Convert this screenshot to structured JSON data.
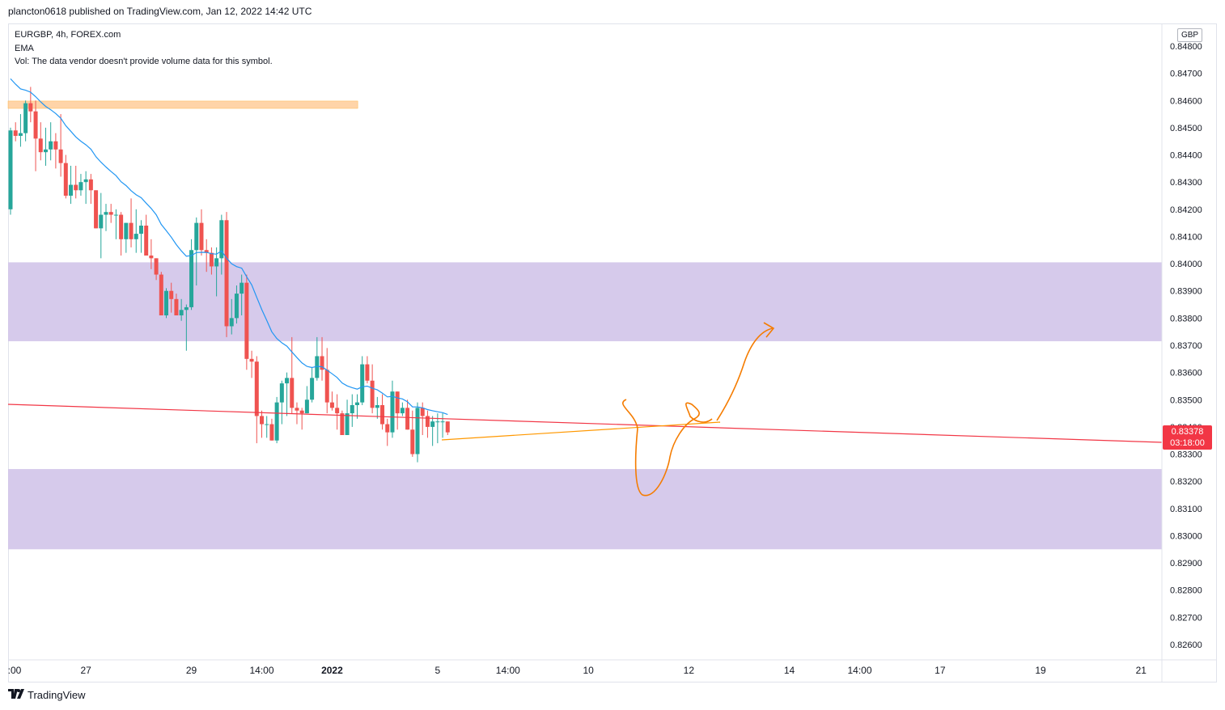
{
  "header": {
    "published_text": "plancton0618 published on TradingView.com, Jan 12, 2022 14:42 UTC"
  },
  "legend": {
    "symbol_line": "EURGBP, 4h, FOREX.com",
    "ema_label": "EMA",
    "vol_line": "Vol: The data vendor doesn't provide volume data for this symbol."
  },
  "currency": "GBP",
  "last_price": {
    "value": "0.83378",
    "countdown": "03:18:00",
    "color": "#f23645"
  },
  "footer": {
    "brand": "TradingView",
    "logo": "tradingview-logo-icon"
  },
  "colors": {
    "up": "#26a69a",
    "down": "#ef5350",
    "ema": "#2196f3",
    "zone": "#d1c4e9",
    "resistance_highlight": "#ffcc99",
    "trendline": "#f23645",
    "drawing": "#f57c00",
    "support_line": "#ff9800"
  },
  "chart_data": {
    "type": "candlestick",
    "symbol": "EURGBP",
    "timeframe": "4h",
    "y_axis": {
      "ylim": [
        0.8254,
        0.8487
      ],
      "ticks": [
        "0.84800",
        "0.84700",
        "0.84600",
        "0.84500",
        "0.84400",
        "0.84300",
        "0.84200",
        "0.84100",
        "0.84000",
        "0.83900",
        "0.83800",
        "0.83700",
        "0.83600",
        "0.83500",
        "0.83400",
        "0.83300",
        "0.83200",
        "0.83100",
        "0.83000",
        "0.82900",
        "0.82800",
        "0.82700",
        "0.82600"
      ]
    },
    "x_axis": {
      "ticks": [
        {
          "label": ":00",
          "i": 0
        },
        {
          "label": "27",
          "i": 15
        },
        {
          "label": "29",
          "i": 36
        },
        {
          "label": "14:00",
          "i": 50
        },
        {
          "label": "2022",
          "i": 64
        },
        {
          "label": "5",
          "i": 85
        },
        {
          "label": "14:00",
          "i": 99
        },
        {
          "label": "10",
          "i": 115
        },
        {
          "label": "12",
          "i": 135
        },
        {
          "label": "14",
          "i": 155
        },
        {
          "label": "14:00",
          "i": 169
        },
        {
          "label": "17",
          "i": 185
        },
        {
          "label": "19",
          "i": 205
        },
        {
          "label": "21",
          "i": 225
        }
      ]
    },
    "candles": [
      [
        0.842,
        0.845,
        0.8418,
        0.8449
      ],
      [
        0.8449,
        0.8452,
        0.8445,
        0.8447
      ],
      [
        0.8447,
        0.8455,
        0.8443,
        0.8448
      ],
      [
        0.8448,
        0.846,
        0.8445,
        0.8459
      ],
      [
        0.8459,
        0.8465,
        0.8452,
        0.8456
      ],
      [
        0.8456,
        0.846,
        0.8434,
        0.8446
      ],
      [
        0.8446,
        0.8452,
        0.8438,
        0.8441
      ],
      [
        0.8441,
        0.845,
        0.8436,
        0.8442
      ],
      [
        0.8442,
        0.8452,
        0.8438,
        0.8445
      ],
      [
        0.8445,
        0.8448,
        0.8435,
        0.8442
      ],
      [
        0.8442,
        0.8455,
        0.8432,
        0.8437
      ],
      [
        0.8437,
        0.844,
        0.8424,
        0.8425
      ],
      [
        0.8425,
        0.8436,
        0.8422,
        0.8429
      ],
      [
        0.8429,
        0.8436,
        0.8424,
        0.8427
      ],
      [
        0.8427,
        0.8433,
        0.8425,
        0.843
      ],
      [
        0.843,
        0.8434,
        0.8422,
        0.8431
      ],
      [
        0.8431,
        0.8433,
        0.8422,
        0.8427
      ],
      [
        0.8427,
        0.8427,
        0.8413,
        0.8413
      ],
      [
        0.8413,
        0.8426,
        0.8402,
        0.8418
      ],
      [
        0.8418,
        0.8422,
        0.8412,
        0.8419
      ],
      [
        0.8419,
        0.8422,
        0.8415,
        0.8418
      ],
      [
        0.8418,
        0.842,
        0.8409,
        0.8418
      ],
      [
        0.8418,
        0.8419,
        0.8403,
        0.8409
      ],
      [
        0.8409,
        0.8415,
        0.8404,
        0.8415
      ],
      [
        0.8415,
        0.8424,
        0.8406,
        0.8409
      ],
      [
        0.8409,
        0.842,
        0.8404,
        0.8411
      ],
      [
        0.8411,
        0.8416,
        0.8404,
        0.8414
      ],
      [
        0.8414,
        0.8418,
        0.8403,
        0.8403
      ],
      [
        0.8403,
        0.8409,
        0.8398,
        0.8402
      ],
      [
        0.8402,
        0.8402,
        0.8394,
        0.8396
      ],
      [
        0.8396,
        0.8397,
        0.8381,
        0.8381
      ],
      [
        0.8381,
        0.8391,
        0.838,
        0.839
      ],
      [
        0.839,
        0.8393,
        0.8382,
        0.8387
      ],
      [
        0.8387,
        0.8389,
        0.8381,
        0.8381
      ],
      [
        0.8381,
        0.8387,
        0.8379,
        0.8383
      ],
      [
        0.8383,
        0.8385,
        0.8368,
        0.8384
      ],
      [
        0.8384,
        0.8409,
        0.8383,
        0.8405
      ],
      [
        0.8405,
        0.8417,
        0.8392,
        0.8415
      ],
      [
        0.8415,
        0.842,
        0.8403,
        0.8405
      ],
      [
        0.8405,
        0.8409,
        0.8397,
        0.8404
      ],
      [
        0.8404,
        0.8406,
        0.8396,
        0.8399
      ],
      [
        0.8399,
        0.8406,
        0.8388,
        0.8402
      ],
      [
        0.8402,
        0.8418,
        0.8396,
        0.8416
      ],
      [
        0.8416,
        0.8419,
        0.8373,
        0.8377
      ],
      [
        0.8377,
        0.8387,
        0.8374,
        0.838
      ],
      [
        0.838,
        0.8392,
        0.8378,
        0.8389
      ],
      [
        0.8389,
        0.8396,
        0.8381,
        0.8393
      ],
      [
        0.8393,
        0.8396,
        0.8361,
        0.8365
      ],
      [
        0.8365,
        0.8368,
        0.8358,
        0.8364
      ],
      [
        0.8364,
        0.8366,
        0.8334,
        0.8344
      ],
      [
        0.8344,
        0.8346,
        0.8336,
        0.8341
      ],
      [
        0.8341,
        0.8344,
        0.8336,
        0.8341
      ],
      [
        0.8341,
        0.8343,
        0.8335,
        0.8335
      ],
      [
        0.8335,
        0.8351,
        0.8334,
        0.8349
      ],
      [
        0.8349,
        0.8357,
        0.8341,
        0.8356
      ],
      [
        0.8356,
        0.836,
        0.8344,
        0.8358
      ],
      [
        0.8358,
        0.8373,
        0.8345,
        0.8347
      ],
      [
        0.8347,
        0.8349,
        0.8341,
        0.8346
      ],
      [
        0.8346,
        0.8347,
        0.8339,
        0.8345
      ],
      [
        0.8345,
        0.8355,
        0.8345,
        0.835
      ],
      [
        0.835,
        0.8362,
        0.8349,
        0.8358
      ],
      [
        0.8358,
        0.8373,
        0.8357,
        0.8366
      ],
      [
        0.8366,
        0.8373,
        0.8357,
        0.8361
      ],
      [
        0.8361,
        0.8369,
        0.8345,
        0.8349
      ],
      [
        0.8349,
        0.8353,
        0.8346,
        0.8347
      ],
      [
        0.8347,
        0.8352,
        0.8339,
        0.8345
      ],
      [
        0.8345,
        0.8346,
        0.8337,
        0.8337
      ],
      [
        0.8337,
        0.835,
        0.8337,
        0.8345
      ],
      [
        0.8345,
        0.8352,
        0.834,
        0.8348
      ],
      [
        0.8348,
        0.8352,
        0.8343,
        0.8349
      ],
      [
        0.8349,
        0.8366,
        0.8348,
        0.8363
      ],
      [
        0.8363,
        0.8366,
        0.8356,
        0.8357
      ],
      [
        0.8357,
        0.8363,
        0.8345,
        0.8347
      ],
      [
        0.8347,
        0.8351,
        0.8343,
        0.8348
      ],
      [
        0.8348,
        0.8352,
        0.8339,
        0.8341
      ],
      [
        0.8341,
        0.8343,
        0.8333,
        0.8338
      ],
      [
        0.8338,
        0.8357,
        0.8336,
        0.8353
      ],
      [
        0.8353,
        0.8353,
        0.8339,
        0.8345
      ],
      [
        0.8345,
        0.8349,
        0.8344,
        0.8347
      ],
      [
        0.8347,
        0.835,
        0.8339,
        0.8339
      ],
      [
        0.8339,
        0.8346,
        0.8329,
        0.833
      ],
      [
        0.833,
        0.8349,
        0.8327,
        0.8347
      ],
      [
        0.8347,
        0.8349,
        0.8337,
        0.8344
      ],
      [
        0.8344,
        0.8346,
        0.8336,
        0.834
      ],
      [
        0.834,
        0.8344,
        0.8333,
        0.8342
      ],
      [
        0.8342,
        0.8345,
        0.8334,
        0.8342
      ],
      [
        0.8342,
        0.8345,
        0.8336,
        0.8342
      ],
      [
        0.8342,
        0.8342,
        0.8337,
        0.8338
      ]
    ],
    "zones": [
      {
        "top": 0.84005,
        "bottom": 0.83715
      },
      {
        "top": 0.83245,
        "bottom": 0.8295
      }
    ],
    "resistance_band": {
      "top": 0.84598,
      "bottom": 0.84571,
      "from_i": 0,
      "to_i": 53
    },
    "last_price": 0.83378,
    "grid": false
  }
}
